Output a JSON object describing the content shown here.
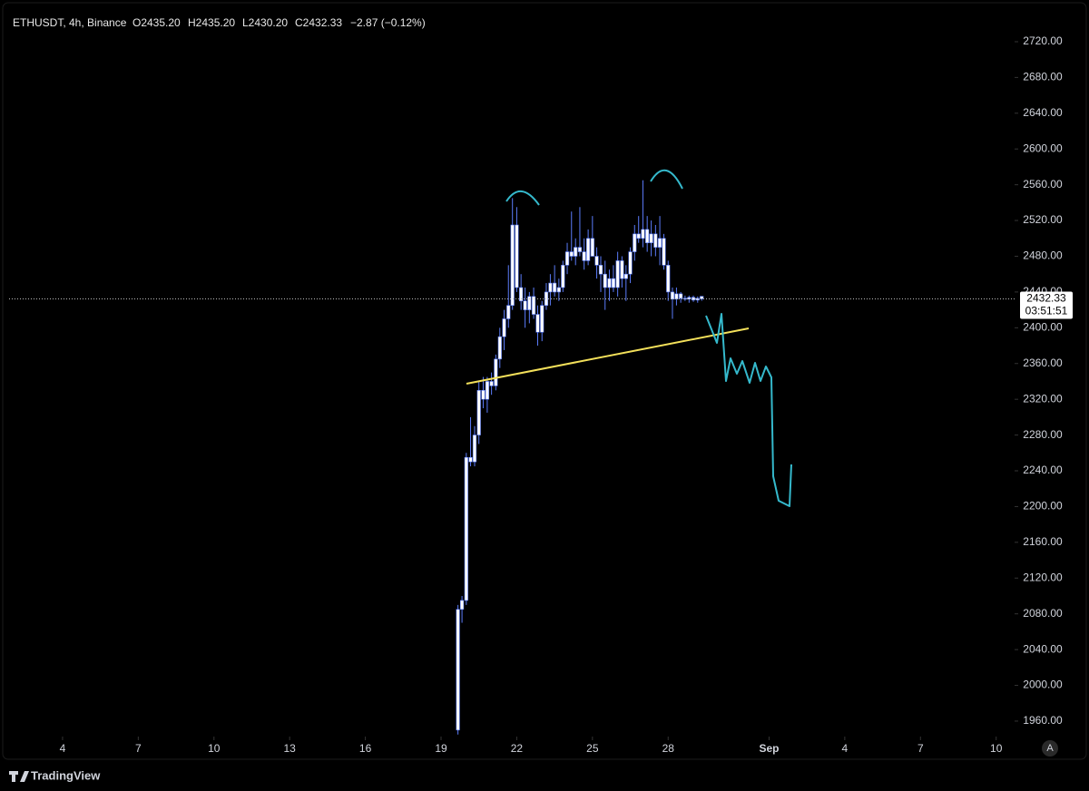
{
  "header": {
    "symbol": "ETHUSDT, 4h, Binance",
    "open": "O2435.20",
    "high": "H2435.20",
    "low": "L2430.20",
    "close": "C2432.33",
    "change": "−2.87 (−0.12%)"
  },
  "chart_data": {
    "type": "candlestick",
    "x": [
      19.67,
      19.83,
      20,
      20.17,
      20.33,
      20.5,
      20.67,
      20.83,
      21,
      21.17,
      21.33,
      21.5,
      21.67,
      21.83,
      22,
      22.17,
      22.33,
      22.5,
      22.67,
      22.83,
      23,
      23.17,
      23.33,
      23.5,
      23.67,
      23.83,
      24,
      24.17,
      24.33,
      24.5,
      24.67,
      24.83,
      25,
      25.17,
      25.33,
      25.5,
      25.67,
      25.83,
      26,
      26.17,
      26.33,
      26.5,
      26.67,
      26.83,
      27,
      27.17,
      27.33,
      27.5,
      27.67,
      27.83,
      28,
      28.17,
      28.33,
      28.5,
      28.67,
      28.83,
      29,
      29.17,
      29.33
    ],
    "open": [
      1950,
      2085,
      2095,
      2255,
      2250,
      2280,
      2330,
      2320,
      2340,
      2335,
      2365,
      2390,
      2410,
      2425,
      2515,
      2445,
      2430,
      2420,
      2435,
      2415,
      2395,
      2425,
      2440,
      2450,
      2440,
      2445,
      2470,
      2485,
      2480,
      2490,
      2485,
      2475,
      2500,
      2480,
      2470,
      2460,
      2445,
      2455,
      2445,
      2475,
      2455,
      2460,
      2485,
      2505,
      2500,
      2510,
      2495,
      2505,
      2490,
      2500,
      2470,
      2440,
      2432,
      2438,
      2433,
      2432,
      2434,
      2431,
      2435.2
    ],
    "high": [
      2090,
      2100,
      2260,
      2300,
      2290,
      2340,
      2345,
      2345,
      2350,
      2370,
      2400,
      2420,
      2470,
      2545,
      2535,
      2460,
      2445,
      2440,
      2445,
      2425,
      2430,
      2450,
      2460,
      2470,
      2455,
      2475,
      2495,
      2530,
      2500,
      2535,
      2500,
      2510,
      2525,
      2490,
      2480,
      2475,
      2465,
      2470,
      2485,
      2480,
      2470,
      2490,
      2515,
      2525,
      2565,
      2525,
      2520,
      2515,
      2525,
      2505,
      2475,
      2445,
      2445,
      2440,
      2436,
      2436,
      2436,
      2435,
      2435.2
    ],
    "low": [
      1945,
      2070,
      2090,
      2245,
      2245,
      2270,
      2310,
      2305,
      2325,
      2330,
      2355,
      2375,
      2400,
      2420,
      2440,
      2420,
      2400,
      2405,
      2410,
      2380,
      2385,
      2420,
      2425,
      2435,
      2430,
      2440,
      2460,
      2475,
      2470,
      2480,
      2465,
      2470,
      2480,
      2455,
      2440,
      2420,
      2430,
      2440,
      2435,
      2445,
      2430,
      2450,
      2475,
      2495,
      2490,
      2485,
      2480,
      2480,
      2470,
      2465,
      2430,
      2410,
      2425,
      2428,
      2430,
      2428,
      2429,
      2428,
      2430.2
    ],
    "close": [
      2085,
      2095,
      2255,
      2250,
      2280,
      2330,
      2320,
      2340,
      2335,
      2365,
      2390,
      2410,
      2425,
      2515,
      2445,
      2430,
      2420,
      2435,
      2415,
      2395,
      2425,
      2440,
      2450,
      2440,
      2445,
      2470,
      2485,
      2480,
      2490,
      2485,
      2475,
      2500,
      2480,
      2470,
      2460,
      2445,
      2455,
      2445,
      2475,
      2455,
      2460,
      2485,
      2505,
      2500,
      2510,
      2495,
      2505,
      2490,
      2500,
      2470,
      2440,
      2432,
      2438,
      2433,
      2432,
      2434,
      2431,
      2433,
      2432.33
    ],
    "up_color": "#ffffff",
    "down_color": "#ffffff",
    "border_color": "#5b7cfa",
    "xlim": [
      1.88,
      41.73
    ],
    "xticks": [
      4,
      7,
      10,
      13,
      16,
      19,
      22,
      25,
      28,
      {
        "value": 32,
        "label": "Sep"
      },
      {
        "value": 35,
        "label": "4"
      },
      {
        "value": 38,
        "label": "7"
      },
      {
        "value": 41,
        "label": "10"
      }
    ],
    "ylim": [
      1942.7,
      2756.5
    ],
    "yticks": [
      {
        "value": 1960,
        "label": "1960.00"
      },
      {
        "value": 2000,
        "label": "2000.00"
      },
      {
        "value": 2040,
        "label": "2040.00"
      },
      {
        "value": 2080,
        "label": "2080.00"
      },
      {
        "value": 2120,
        "label": "2120.00"
      },
      {
        "value": 2160,
        "label": "2160.00"
      },
      {
        "value": 2200,
        "label": "2200.00"
      },
      {
        "value": 2240,
        "label": "2240.00"
      },
      {
        "value": 2280,
        "label": "2280.00"
      },
      {
        "value": 2320,
        "label": "2320.00"
      },
      {
        "value": 2360,
        "label": "2360.00"
      },
      {
        "value": 2400,
        "label": "2400.00"
      },
      {
        "value": 2440,
        "label": "2440.00"
      },
      {
        "value": 2480,
        "label": "2480.00"
      },
      {
        "value": 2520,
        "label": "2520.00"
      },
      {
        "value": 2560,
        "label": "2560.00"
      },
      {
        "value": 2600,
        "label": "2600.00"
      },
      {
        "value": 2640,
        "label": "2640.00"
      },
      {
        "value": 2680,
        "label": "2680.00"
      },
      {
        "value": 2720,
        "label": "2720.00"
      }
    ],
    "last_price": 2432.33,
    "countdown": "03:51:51"
  },
  "footer": {
    "brand": "TradingView",
    "auto_button": "A"
  }
}
